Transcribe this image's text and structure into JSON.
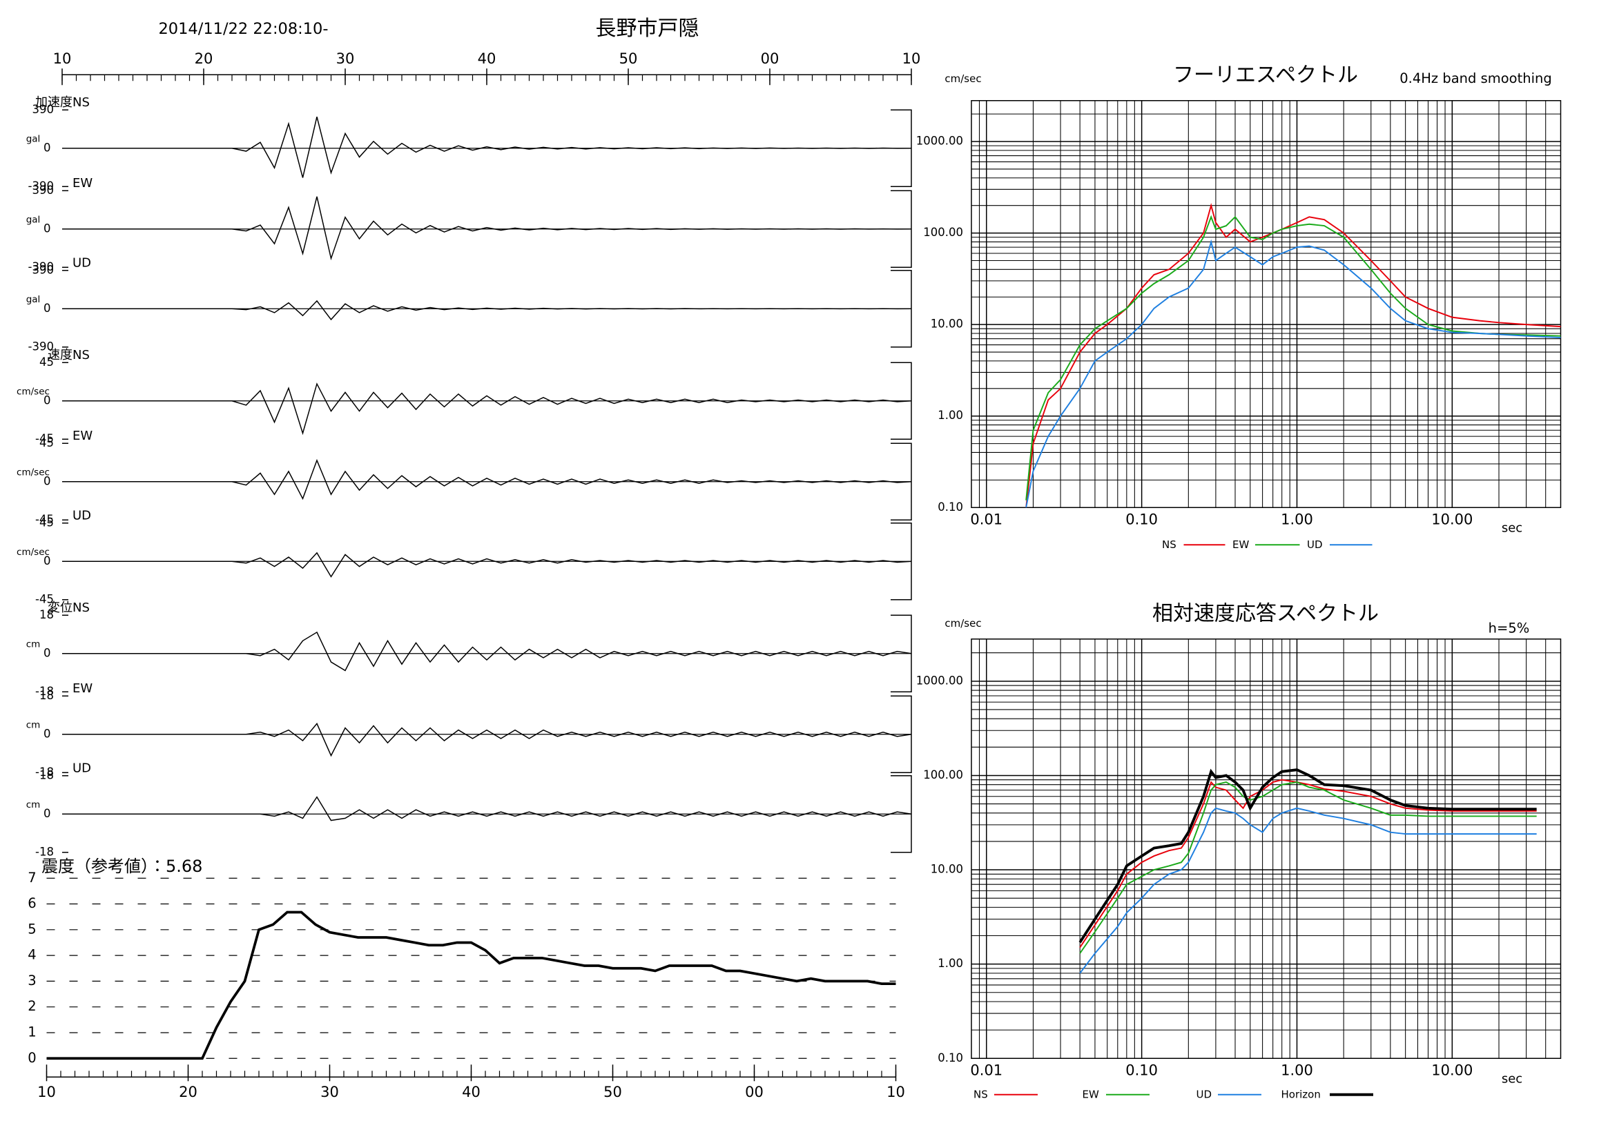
{
  "chart_data": [
    {
      "type": "waveform",
      "title": "長野市戸隠",
      "subtitle": "2014/11/22 22:08:10-",
      "xlim": [
        10,
        70
      ],
      "xticks": [
        10,
        20,
        30,
        40,
        50,
        {
          "value": 60,
          "label": "00"
        },
        {
          "value": 70,
          "label": "10"
        }
      ],
      "x": [
        10,
        22,
        23,
        24,
        25,
        26,
        27,
        28,
        29,
        30,
        31,
        32,
        33,
        34,
        35,
        36,
        37,
        38,
        39,
        40,
        41,
        42,
        43,
        44,
        45,
        46,
        47,
        48,
        49,
        50,
        51,
        52,
        53,
        54,
        55,
        56,
        57,
        58,
        59,
        60,
        61,
        62,
        63,
        64,
        65,
        66,
        67,
        68,
        69,
        70
      ],
      "color": "#000000",
      "panels": [
        {
          "group": "加速度",
          "name": "NS",
          "unit": "gal",
          "ylim": [
            -390,
            390
          ],
          "yticks": [
            -390,
            0,
            390
          ],
          "values": [
            0,
            0,
            -30,
            60,
            -200,
            250,
            -300,
            320,
            -250,
            150,
            -90,
            70,
            -60,
            50,
            -40,
            30,
            -30,
            25,
            -20,
            15,
            -15,
            12,
            -10,
            10,
            -8,
            8,
            -8,
            6,
            -6,
            5,
            -5,
            5,
            -4,
            4,
            -4,
            3,
            -3,
            3,
            -3,
            3,
            -2,
            2,
            -2,
            2,
            -2,
            2,
            -2,
            2,
            -1,
            0
          ]
        },
        {
          "name": "EW",
          "unit": "gal",
          "ylim": [
            -390,
            390
          ],
          "yticks": [
            -390,
            0,
            390
          ],
          "values": [
            0,
            0,
            -20,
            40,
            -150,
            220,
            -250,
            330,
            -300,
            120,
            -100,
            80,
            -60,
            50,
            -40,
            35,
            -30,
            25,
            -20,
            15,
            -12,
            10,
            -10,
            8,
            -8,
            6,
            -6,
            5,
            -5,
            5,
            -4,
            4,
            -4,
            3,
            -3,
            3,
            -3,
            2,
            -2,
            2,
            -2,
            2,
            -2,
            2,
            -2,
            2,
            -1,
            1,
            -1,
            0
          ]
        },
        {
          "name": "UD",
          "unit": "gal",
          "ylim": [
            -390,
            390
          ],
          "yticks": [
            -390,
            0,
            390
          ],
          "values": [
            0,
            0,
            -10,
            20,
            -40,
            60,
            -70,
            80,
            -110,
            50,
            -40,
            30,
            -25,
            20,
            -15,
            12,
            -10,
            8,
            -8,
            6,
            -5,
            5,
            -4,
            4,
            -3,
            3,
            -3,
            2,
            -2,
            2,
            -2,
            2,
            -2,
            2,
            -1,
            1,
            -1,
            1,
            -1,
            1,
            -1,
            1,
            -1,
            1,
            -1,
            1,
            -1,
            1,
            -1,
            0
          ]
        },
        {
          "group": "速度",
          "name": "NS",
          "unit": "cm/sec",
          "ylim": [
            -45,
            45
          ],
          "yticks": [
            -45,
            0,
            45
          ],
          "values": [
            0,
            0,
            -5,
            12,
            -25,
            15,
            -38,
            20,
            -12,
            10,
            -12,
            10,
            -8,
            9,
            -10,
            8,
            -7,
            8,
            -6,
            6,
            -5,
            5,
            -4,
            4,
            -4,
            3,
            -3,
            3,
            -3,
            2,
            -2,
            2,
            -2,
            2,
            -2,
            2,
            -2,
            1,
            -1,
            1,
            -1,
            1,
            -1,
            1,
            -1,
            1,
            -1,
            1,
            -1,
            0
          ]
        },
        {
          "name": "EW",
          "unit": "cm/sec",
          "ylim": [
            -45,
            45
          ],
          "yticks": [
            -45,
            0,
            45
          ],
          "values": [
            0,
            0,
            -4,
            10,
            -15,
            12,
            -20,
            25,
            -15,
            12,
            -10,
            8,
            -8,
            7,
            -6,
            6,
            -5,
            5,
            -5,
            4,
            -4,
            4,
            -3,
            3,
            -3,
            3,
            -3,
            3,
            -2,
            2,
            -2,
            2,
            -2,
            2,
            -2,
            2,
            -1,
            1,
            -1,
            1,
            -1,
            1,
            -1,
            1,
            -1,
            1,
            -1,
            1,
            -1,
            0
          ]
        },
        {
          "name": "UD",
          "unit": "cm/sec",
          "ylim": [
            -45,
            45
          ],
          "yticks": [
            -45,
            0,
            45
          ],
          "values": [
            0,
            0,
            -2,
            4,
            -6,
            5,
            -8,
            10,
            -18,
            8,
            -6,
            5,
            -4,
            4,
            -4,
            3,
            -3,
            3,
            -3,
            3,
            -2,
            2,
            -2,
            2,
            -2,
            2,
            -1,
            1,
            -1,
            1,
            -1,
            1,
            -1,
            1,
            -1,
            1,
            -1,
            1,
            -1,
            1,
            -1,
            1,
            -1,
            1,
            -1,
            1,
            -1,
            1,
            -1,
            0
          ]
        },
        {
          "group": "変位",
          "name": "NS",
          "unit": "cm",
          "ylim": [
            -18,
            18
          ],
          "yticks": [
            -18,
            0,
            18
          ],
          "values": [
            0,
            0,
            0,
            -1,
            2,
            -3,
            6,
            10,
            -4,
            -8,
            5,
            -6,
            6,
            -5,
            5,
            -4,
            4,
            -4,
            3,
            -3,
            3,
            -3,
            2,
            -2,
            2,
            -2,
            2,
            -2,
            1,
            -1,
            1,
            -1,
            1,
            -1,
            1,
            -1,
            1,
            -1,
            1,
            -1,
            1,
            -1,
            1,
            -1,
            1,
            -1,
            1,
            -1,
            1,
            0
          ]
        },
        {
          "name": "EW",
          "unit": "cm",
          "ylim": [
            -18,
            18
          ],
          "yticks": [
            -18,
            0,
            18
          ],
          "values": [
            0,
            0,
            0,
            1,
            -1,
            2,
            -3,
            5,
            -10,
            3,
            -4,
            4,
            -4,
            3,
            -3,
            3,
            -3,
            2,
            -2,
            2,
            -2,
            2,
            -2,
            2,
            -1,
            1,
            -1,
            1,
            -1,
            1,
            -1,
            1,
            -1,
            1,
            -1,
            1,
            -1,
            1,
            -1,
            1,
            -1,
            1,
            -1,
            1,
            -1,
            1,
            -1,
            1,
            -1,
            0
          ]
        },
        {
          "name": "UD",
          "unit": "cm",
          "ylim": [
            -18,
            18
          ],
          "yticks": [
            -18,
            0,
            18
          ],
          "values": [
            0,
            0,
            0,
            0,
            -1,
            1,
            -2,
            8,
            -3,
            -2,
            2,
            -2,
            2,
            -2,
            2,
            -1,
            1,
            -1,
            1,
            -1,
            1,
            -1,
            1,
            -1,
            1,
            -1,
            1,
            -1,
            1,
            -1,
            1,
            -1,
            1,
            -1,
            1,
            -1,
            1,
            -1,
            1,
            -1,
            1,
            -1,
            1,
            -1,
            1,
            -1,
            1,
            -1,
            1,
            0
          ]
        }
      ]
    },
    {
      "type": "line",
      "title": "震度（参考値）：5.68",
      "xlim": [
        10,
        70
      ],
      "xticks": [
        10,
        20,
        30,
        40,
        50,
        {
          "value": 60,
          "label": "00"
        },
        {
          "value": 70,
          "label": "10"
        }
      ],
      "ylim": [
        0,
        7
      ],
      "yticks": [
        0,
        1,
        2,
        3,
        4,
        5,
        6,
        7
      ],
      "grid": true,
      "color": "#000000",
      "x": [
        10,
        11,
        12,
        13,
        14,
        15,
        16,
        17,
        18,
        19,
        20,
        21,
        22,
        23,
        24,
        25,
        26,
        27,
        28,
        29,
        30,
        31,
        32,
        33,
        34,
        35,
        36,
        37,
        38,
        39,
        40,
        41,
        42,
        43,
        44,
        45,
        46,
        47,
        48,
        49,
        50,
        51,
        52,
        53,
        54,
        55,
        56,
        57,
        58,
        59,
        60,
        61,
        62,
        63,
        64,
        65,
        66,
        67,
        68,
        69,
        70
      ],
      "values": [
        0,
        0,
        0,
        0,
        0,
        0,
        0,
        0,
        0,
        0,
        0,
        0,
        1.2,
        2.2,
        3.0,
        5.0,
        5.2,
        5.68,
        5.68,
        5.2,
        4.9,
        4.8,
        4.7,
        4.7,
        4.7,
        4.6,
        4.5,
        4.4,
        4.4,
        4.5,
        4.5,
        4.2,
        3.7,
        3.9,
        3.9,
        3.9,
        3.8,
        3.7,
        3.6,
        3.6,
        3.5,
        3.5,
        3.5,
        3.4,
        3.6,
        3.6,
        3.6,
        3.6,
        3.4,
        3.4,
        3.3,
        3.2,
        3.1,
        3.0,
        3.1,
        3.0,
        3.0,
        3.0,
        3.0,
        2.9,
        2.9
      ]
    },
    {
      "type": "loglog",
      "title": "フーリエスペクトル",
      "annotation": "0.4Hz band smoothing",
      "y_label": "cm/sec",
      "x_label": "sec",
      "log_scale": true,
      "grid": true,
      "xlim": [
        0.008,
        50
      ],
      "ylim": [
        0.1,
        2800
      ],
      "xticks": [
        {
          "value": 0.01,
          "label": "0.01"
        },
        {
          "value": 0.1,
          "label": "0.10"
        },
        {
          "value": 1,
          "label": "1.00"
        },
        {
          "value": 10,
          "label": "10.00"
        }
      ],
      "yticks": [
        {
          "value": 0.1,
          "label": "0.10"
        },
        {
          "value": 1,
          "label": "1.00"
        },
        {
          "value": 10,
          "label": "10.00"
        },
        {
          "value": 100,
          "label": "100.00"
        },
        {
          "value": 1000,
          "label": "1000.00"
        }
      ],
      "x": [
        0.018,
        0.02,
        0.025,
        0.03,
        0.04,
        0.05,
        0.06,
        0.08,
        0.1,
        0.12,
        0.15,
        0.2,
        0.25,
        0.28,
        0.3,
        0.35,
        0.4,
        0.5,
        0.6,
        0.7,
        0.8,
        1.0,
        1.2,
        1.5,
        2,
        3,
        4,
        5,
        7,
        10,
        15,
        20,
        30,
        50
      ],
      "series": [
        {
          "name": "NS",
          "color": "#e8000b",
          "values": [
            0.1,
            0.5,
            1.5,
            2,
            5,
            8,
            10,
            15,
            25,
            35,
            40,
            60,
            100,
            200,
            130,
            90,
            110,
            80,
            90,
            100,
            110,
            130,
            150,
            140,
            100,
            50,
            30,
            20,
            15,
            12,
            11,
            10.5,
            10,
            9.5
          ]
        },
        {
          "name": "EW",
          "color": "#1aaa1a",
          "values": [
            0.12,
            0.7,
            1.8,
            2.5,
            6,
            9,
            11,
            15,
            22,
            28,
            35,
            50,
            90,
            150,
            110,
            120,
            150,
            90,
            85,
            100,
            110,
            120,
            125,
            120,
            90,
            40,
            22,
            15,
            10,
            8.5,
            8,
            7.8,
            7.7,
            7.5
          ]
        },
        {
          "name": "UD",
          "color": "#1e7fe0",
          "values": [
            0.1,
            0.25,
            0.6,
            1,
            2,
            4,
            5,
            7,
            10,
            15,
            20,
            25,
            40,
            80,
            50,
            60,
            70,
            55,
            45,
            55,
            60,
            70,
            72,
            65,
            45,
            25,
            15,
            11,
            9,
            8.2,
            8,
            7.8,
            7.5,
            7.2
          ]
        }
      ]
    },
    {
      "type": "loglog",
      "title": "相対速度応答スペクトル",
      "annotation": "h=5%",
      "y_label": "cm/sec",
      "x_label": "sec",
      "log_scale": true,
      "grid": true,
      "xlim": [
        0.008,
        50
      ],
      "ylim": [
        0.1,
        2800
      ],
      "xticks": [
        {
          "value": 0.01,
          "label": "0.01"
        },
        {
          "value": 0.1,
          "label": "0.10"
        },
        {
          "value": 1,
          "label": "1.00"
        },
        {
          "value": 10,
          "label": "10.00"
        }
      ],
      "yticks": [
        {
          "value": 0.1,
          "label": "0.10"
        },
        {
          "value": 1,
          "label": "1.00"
        },
        {
          "value": 10,
          "label": "10.00"
        },
        {
          "value": 100,
          "label": "100.00"
        },
        {
          "value": 1000,
          "label": "1000.00"
        }
      ],
      "x": [
        0.04,
        0.05,
        0.07,
        0.08,
        0.1,
        0.12,
        0.15,
        0.18,
        0.2,
        0.25,
        0.28,
        0.3,
        0.35,
        0.4,
        0.45,
        0.5,
        0.6,
        0.7,
        0.8,
        1.0,
        1.2,
        1.5,
        2,
        3,
        4,
        5,
        7,
        10,
        20,
        35
      ],
      "series": [
        {
          "name": "NS",
          "color": "#e8000b",
          "values": [
            1.5,
            2.6,
            6,
            9,
            12,
            14,
            16,
            17,
            22,
            50,
            85,
            75,
            70,
            55,
            45,
            60,
            70,
            85,
            90,
            85,
            80,
            72,
            68,
            60,
            50,
            45,
            43,
            42,
            42,
            42
          ]
        },
        {
          "name": "EW",
          "color": "#1aaa1a",
          "values": [
            1.3,
            2.2,
            5,
            7,
            8.5,
            10,
            11,
            12,
            15,
            40,
            70,
            80,
            85,
            75,
            60,
            55,
            60,
            70,
            80,
            85,
            75,
            70,
            55,
            45,
            38,
            38,
            37,
            37,
            37,
            37
          ]
        },
        {
          "name": "UD",
          "color": "#1e7fe0",
          "values": [
            0.8,
            1.3,
            2.5,
            3.5,
            5,
            7,
            9,
            10,
            12,
            25,
            40,
            45,
            42,
            40,
            35,
            30,
            25,
            35,
            40,
            45,
            42,
            38,
            35,
            30,
            25,
            24,
            24,
            24,
            24,
            24
          ]
        },
        {
          "name": "Horizon",
          "color": "#000000",
          "values": [
            1.7,
            3,
            7,
            11,
            14,
            17,
            18,
            19,
            25,
            60,
            110,
            95,
            100,
            85,
            70,
            45,
            75,
            95,
            110,
            115,
            100,
            80,
            78,
            70,
            55,
            48,
            45,
            44,
            44,
            44
          ]
        }
      ]
    }
  ]
}
